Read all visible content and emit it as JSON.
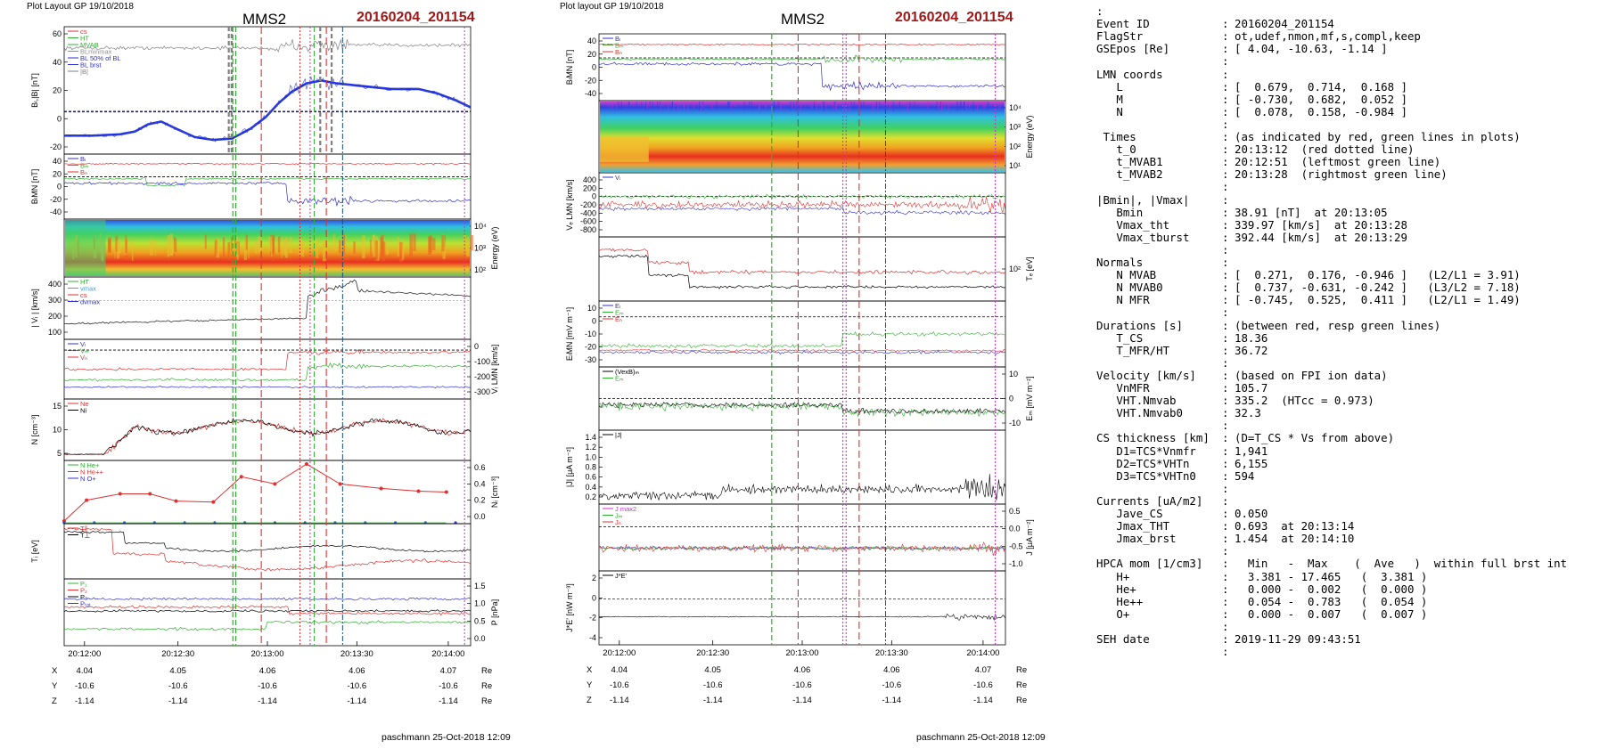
{
  "chart_data": {
    "type": "line",
    "left_figure": {
      "header_left": "Plot Layout GP 19/10/2018",
      "spacecraft": "MMS2",
      "event": "20160204_201154",
      "footer": "paschmann 25-Oct-2018 12:09",
      "time_ticks": [
        "20:12:00",
        "20:12:30",
        "20:13:00",
        "20:13:30",
        "20:14:00"
      ],
      "ephem_rows": [
        {
          "label": "X",
          "values": [
            "4.04",
            "4.05",
            "4.06",
            "4.06",
            "4.07"
          ],
          "unit": "Re"
        },
        {
          "label": "Y",
          "values": [
            "-10.6",
            "-10.6",
            "-10.6",
            "-10.6",
            "-10.6"
          ],
          "unit": "Re"
        },
        {
          "label": "Z",
          "values": [
            "-1.14",
            "-1.14",
            "-1.14",
            "-1.14",
            "-1.14"
          ],
          "unit": "Re"
        }
      ],
      "panels": [
        {
          "id": "bl",
          "ylabel": "Bₗ,|B| [nT]",
          "ylim": [
            -30,
            60
          ],
          "ticks": [
            "60",
            "40",
            "20",
            "0",
            "-20"
          ],
          "side": "left",
          "legend": [
            "cs",
            "HT",
            "MVAB",
            "BLminmax",
            "BL 50% of BL",
            "BL brst",
            "|B|"
          ],
          "legend_colors": [
            "#e03030",
            "#30b030",
            "#30b030",
            "#909090",
            "#3030d0",
            "#3030d0",
            "#808080"
          ]
        },
        {
          "id": "blmn",
          "ylabel": "BₗMN [nT]",
          "ylim": [
            -55,
            50
          ],
          "ticks": [
            "40",
            "20",
            "0",
            "-20",
            "-40"
          ],
          "side": "left",
          "legend": [
            "Bₗ",
            "Bₘ",
            "Bₙ"
          ],
          "legend_colors": [
            "#3030d0",
            "#30b030",
            "#e03030"
          ]
        },
        {
          "id": "spec",
          "ylabel": "Energy (eV)",
          "ticks": [
            "10⁴",
            "10³",
            "10²"
          ],
          "side": "right"
        },
        {
          "id": "vi",
          "ylabel": "| Vᵢ | [km/s]",
          "ylim": [
            40,
            400
          ],
          "ticks": [
            "400",
            "300",
            "200",
            "100"
          ],
          "side": "left",
          "legend": [
            "HT",
            "vmax",
            "cs",
            "dvmax"
          ],
          "legend_colors": [
            "#30b030",
            "#40a0d0",
            "#e03030",
            "#3030d0"
          ]
        },
        {
          "id": "vilmn",
          "ylabel": "Vᵢ LMN [km/s]",
          "ylim": [
            -360,
            60
          ],
          "ticks": [
            "0",
            "-100",
            "-200",
            "-300"
          ],
          "side": "right",
          "legend": [
            "Vₗ",
            "Vₘ",
            "Vₙ"
          ],
          "legend_colors": [
            "#3030d0",
            "#30b030",
            "#e03030"
          ]
        },
        {
          "id": "n",
          "ylabel": "N [cm⁻³]",
          "ylim": [
            0,
            20
          ],
          "ticks": [
            "15",
            "10",
            "5"
          ],
          "side": "left",
          "legend": [
            "Ne",
            "Ni"
          ],
          "legend_colors": [
            "#e03030",
            "#000000"
          ]
        },
        {
          "id": "ni",
          "ylabel": "Nᵢ [cm⁻³]",
          "ylim": [
            0,
            0.7
          ],
          "ticks": [
            "0.6",
            "0.4",
            "0.2",
            "0.0"
          ],
          "side": "right",
          "legend": [
            "N He+",
            "N He++",
            "N O+"
          ],
          "legend_colors": [
            "#30b030",
            "#e03030",
            "#3030d0"
          ]
        },
        {
          "id": "ti",
          "ylabel": "Tᵢ [eV]",
          "ylim": [
            0,
            1
          ],
          "ticks": [],
          "side": "left",
          "legend": [
            "T∥",
            "T⊥"
          ],
          "legend_colors": [
            "#e03030",
            "#000000"
          ]
        },
        {
          "id": "p",
          "ylabel": "P [nPa]",
          "ylim": [
            0,
            1.8
          ],
          "ticks": [
            "1.5",
            "1.0",
            "0.5",
            "0.0"
          ],
          "side": "right",
          "legend": [
            "P₁",
            "P₂",
            "P₃",
            "Pₜₒₜ"
          ],
          "legend_colors": [
            "#30b030",
            "#e03030",
            "#000000",
            "#3030d0"
          ]
        }
      ],
      "bl_profile": [
        [
          0,
          -17
        ],
        [
          15,
          -17
        ],
        [
          30,
          -16
        ],
        [
          38,
          -14
        ],
        [
          45,
          -9
        ],
        [
          52,
          -7
        ],
        [
          60,
          -12
        ],
        [
          70,
          -18
        ],
        [
          80,
          -20
        ],
        [
          90,
          -19
        ],
        [
          100,
          -12
        ],
        [
          108,
          -4
        ],
        [
          115,
          6
        ],
        [
          122,
          14
        ],
        [
          130,
          20
        ],
        [
          138,
          22
        ],
        [
          146,
          20
        ],
        [
          160,
          18
        ],
        [
          175,
          16
        ],
        [
          190,
          16
        ],
        [
          200,
          13
        ],
        [
          210,
          8
        ],
        [
          218,
          3
        ]
      ],
      "ni_he2": [
        [
          0,
          0.03
        ],
        [
          12,
          0.26
        ],
        [
          30,
          0.33
        ],
        [
          46,
          0.33
        ],
        [
          60,
          0.25
        ],
        [
          80,
          0.24
        ],
        [
          95,
          0.52
        ],
        [
          113,
          0.44
        ],
        [
          130,
          0.66
        ],
        [
          148,
          0.44
        ],
        [
          170,
          0.39
        ],
        [
          190,
          0.36
        ],
        [
          205,
          0.35
        ]
      ]
    },
    "middle_figure": {
      "header_left": "Plot layout GP 19/10/2018",
      "spacecraft": "MMS2",
      "event": "20160204_201154",
      "footer": "paschmann 25-Oct-2018 12:09",
      "time_ticks": [
        "20:12:00",
        "20:12:30",
        "20:13:00",
        "20:13:30",
        "20:14:00"
      ],
      "ephem_rows": [
        {
          "label": "X",
          "values": [
            "4.04",
            "4.05",
            "4.06",
            "4.06",
            "4.07"
          ],
          "unit": "Re"
        },
        {
          "label": "Y",
          "values": [
            "-10.6",
            "-10.6",
            "-10.6",
            "-10.6",
            "-10.6"
          ],
          "unit": "Re"
        },
        {
          "label": "Z",
          "values": [
            "-1.14",
            "-1.14",
            "-1.14",
            "-1.14",
            "-1.14"
          ],
          "unit": "Re"
        }
      ],
      "panels": [
        {
          "id": "blmn2",
          "ylabel": "BₗMN [nT]",
          "ylim": [
            -55,
            42
          ],
          "ticks": [
            "40",
            "20",
            "0",
            "-20",
            "-40"
          ],
          "side": "left",
          "legend": [
            "Bₗ",
            "Bₘ",
            "Bₙ"
          ],
          "legend_colors": [
            "#3030d0",
            "#30b030",
            "#e03030"
          ]
        },
        {
          "id": "espec",
          "ylabel": "Energy (eV)",
          "ticks": [
            "10⁴",
            "10³",
            "10²",
            "10¹"
          ],
          "side": "right"
        },
        {
          "id": "ve",
          "ylabel": "Vₑ LMN [km/s]",
          "ylim": [
            -850,
            500
          ],
          "ticks": [
            "400",
            "200",
            "0",
            "-200",
            "-400",
            "-600",
            "-800"
          ],
          "side": "left",
          "legend": [
            "Vₗ"
          ],
          "legend_colors": [
            "#3030d0"
          ]
        },
        {
          "id": "te",
          "ylabel": "Tₑ [eV]",
          "ylim": [
            0,
            1
          ],
          "ticks": [
            "10²"
          ],
          "side": "right"
        },
        {
          "id": "elmn",
          "ylabel": "EₗMN [mV m⁻¹]",
          "ylim": [
            -38,
            12
          ],
          "ticks": [
            "10",
            "0",
            "-10",
            "-20",
            "-30"
          ],
          "side": "left",
          "legend": [
            "Eₗ",
            "Eₘ",
            "Eₙ"
          ],
          "legend_colors": [
            "#3030d0",
            "#30b030",
            "#e03030"
          ]
        },
        {
          "id": "em",
          "ylabel": "Eₘ [mV m⁻²]",
          "ylim": [
            -14,
            15
          ],
          "ticks": [
            "10",
            "0",
            "-10"
          ],
          "side": "right",
          "legend": [
            "(VexB)ₘ",
            "Eₘ"
          ],
          "legend_colors": [
            "#000000",
            "#30b030"
          ]
        },
        {
          "id": "j",
          "ylabel": "|J| [μA m⁻²]",
          "ylim": [
            0,
            1.45
          ],
          "ticks": [
            "1.4",
            "1.2",
            "1.0",
            "0.8",
            "0.6",
            "0.4",
            "0.2"
          ],
          "side": "left",
          "legend": [
            "|J|"
          ],
          "legend_colors": [
            "#000000"
          ]
        },
        {
          "id": "jlmn",
          "ylabel": "J [μA m⁻²]",
          "ylim": [
            -1.45,
            0.75
          ],
          "ticks": [
            "0.5",
            "0.0",
            "-0.5",
            "-1.0"
          ],
          "side": "right",
          "legend": [
            "J max2",
            "Jₘ",
            "Jₙ"
          ],
          "legend_colors": [
            "#d030d0",
            "#30b030",
            "#e03030"
          ]
        },
        {
          "id": "je",
          "ylabel": "J*E' [nW m⁻³]",
          "ylim": [
            -5,
            3
          ],
          "ticks": [
            "2",
            "0",
            "-2",
            "-4"
          ],
          "side": "left",
          "legend": [
            "J*E'"
          ],
          "legend_colors": [
            "#000000"
          ]
        }
      ]
    }
  },
  "info_panel": {
    "lines": [
      {
        "k": ":",
        "s": "",
        "v": ""
      },
      {
        "k": "Event ID",
        "s": ":",
        "v": "20160204_201154"
      },
      {
        "k": "FlagStr",
        "s": ":",
        "v": "ot,udef,nmon,mf,s,compl,keep"
      },
      {
        "k": "GSEpos [Re]",
        "s": ":",
        "v": "[ 4.04, -10.63, -1.14 ]"
      },
      {
        "k": "",
        "s": ":",
        "v": ""
      },
      {
        "k": "LMN coords",
        "s": ":",
        "v": ""
      },
      {
        "k": "   L",
        "s": ":",
        "v": "[  0.679,  0.714,  0.168 ]"
      },
      {
        "k": "   M",
        "s": ":",
        "v": "[ -0.730,  0.682,  0.052 ]"
      },
      {
        "k": "   N",
        "s": ":",
        "v": "[  0.078,  0.158, -0.984 ]"
      },
      {
        "k": "",
        "s": ":",
        "v": ""
      },
      {
        "k": " Times",
        "s": ":",
        "v": "(as indicated by red, green lines in plots)"
      },
      {
        "k": "   t_0",
        "s": ":",
        "v": "20:13:12  (red dotted line)"
      },
      {
        "k": "   t_MVAB1",
        "s": ":",
        "v": "20:12:51  (leftmost green line)"
      },
      {
        "k": "   t_MVAB2",
        "s": ":",
        "v": "20:13:28  (rightmost green line)"
      },
      {
        "k": "",
        "s": ":",
        "v": ""
      },
      {
        "k": "|Bmin|, |Vmax|",
        "s": ":",
        "v": ""
      },
      {
        "k": "   Bmin",
        "s": ":",
        "v": "38.91 [nT]  at 20:13:05"
      },
      {
        "k": "   Vmax_tht",
        "s": ":",
        "v": "339.97 [km/s]  at 20:13:28"
      },
      {
        "k": "   Vmax_tburst",
        "s": ":",
        "v": "392.44 [km/s]  at 20:13:29"
      },
      {
        "k": "",
        "s": ":",
        "v": ""
      },
      {
        "k": "Normals",
        "s": ":",
        "v": ""
      },
      {
        "k": "   N MVAB",
        "s": ":",
        "v": "[  0.271,  0.176, -0.946 ]   (L2/L1 = 3.91)"
      },
      {
        "k": "   N MVAB0",
        "s": ":",
        "v": "[  0.737, -0.631, -0.242 ]   (L3/L2 = 7.18)"
      },
      {
        "k": "   N MFR",
        "s": ":",
        "v": "[ -0.745,  0.525,  0.411 ]   (L2/L1 = 1.49)"
      },
      {
        "k": "",
        "s": ":",
        "v": ""
      },
      {
        "k": "Durations [s]",
        "s": ":",
        "v": "(between red, resp green lines)"
      },
      {
        "k": "   T_CS",
        "s": ":",
        "v": "18.36"
      },
      {
        "k": "   T_MFR/HT",
        "s": ":",
        "v": "36.72"
      },
      {
        "k": "",
        "s": ":",
        "v": ""
      },
      {
        "k": "Velocity [km/s]",
        "s": ":",
        "v": "(based on FPI ion data)"
      },
      {
        "k": "   VnMFR",
        "s": ":",
        "v": "105.7"
      },
      {
        "k": "   VHT.Nmvab",
        "s": ":",
        "v": "335.2  (HTcc = 0.973)"
      },
      {
        "k": "   VHT.Nmvab0",
        "s": ":",
        "v": "32.3"
      },
      {
        "k": "",
        "s": ":",
        "v": ""
      },
      {
        "k": "CS thickness [km]",
        "s": ":",
        "v": "(D=T_CS * Vs from above)"
      },
      {
        "k": "   D1=TCS*Vnmfr",
        "s": ":",
        "v": "1,941"
      },
      {
        "k": "   D2=TCS*VHTn",
        "s": ":",
        "v": "6,155"
      },
      {
        "k": "   D3=TCS*VHTn0",
        "s": ":",
        "v": "594"
      },
      {
        "k": "",
        "s": ":",
        "v": ""
      },
      {
        "k": "Currents [uA/m2]",
        "s": ":",
        "v": ""
      },
      {
        "k": "   Jave_CS",
        "s": ":",
        "v": "0.050"
      },
      {
        "k": "   Jmax_THT",
        "s": ":",
        "v": "0.693  at 20:13:14"
      },
      {
        "k": "   Jmax_brst",
        "s": ":",
        "v": "1.454  at 20:14:10"
      },
      {
        "k": "",
        "s": ":",
        "v": ""
      },
      {
        "k": "HPCA mom [1/cm3]",
        "s": ":",
        "v": "  Min   -  Max    (  Ave   )  within full brst int"
      },
      {
        "k": "   H+",
        "s": ":",
        "v": "  3.381 - 17.465   (  3.381 )"
      },
      {
        "k": "   He+",
        "s": ":",
        "v": "  0.000 -  0.002   (  0.000 )"
      },
      {
        "k": "   He++",
        "s": ":",
        "v": "  0.054 -  0.783   (  0.054 )"
      },
      {
        "k": "   O+",
        "s": ":",
        "v": "  0.000 -  0.007   (  0.007 )"
      },
      {
        "k": "",
        "s": ":",
        "v": ""
      },
      {
        "k": "SEH date",
        "s": ":",
        "v": "2019-11-29 09:43:51"
      },
      {
        "k": "",
        "s": ":",
        "v": ""
      }
    ]
  }
}
